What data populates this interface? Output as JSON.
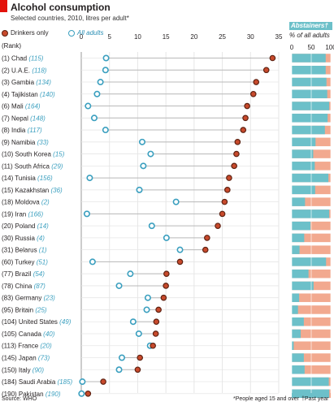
{
  "title": "Alcohol consumption",
  "subtitle": "Selected countries, 2010, litres per adult*",
  "legend": {
    "drinkers": "Drinkers only",
    "all": "All adults"
  },
  "abstainers_header": "Abstainers†",
  "abstainers_subheader": "% of all adults",
  "rank_header": "(Rank)",
  "footer": {
    "source": "Source: WHO",
    "note1": "*People aged 15 and over",
    "note2": "†Past year"
  },
  "colors": {
    "drinkers_fill": "#c84a2c",
    "drinkers_stroke": "#5e2212",
    "all_stroke": "#3a9fbf",
    "abstainers": "#6cc0c9",
    "drinkers_bar": "#f2a98f",
    "grid": "#e6e6e6"
  },
  "chart_data": {
    "type": "dot",
    "x_axis": {
      "min": 0,
      "max": 35,
      "ticks": [
        0,
        5,
        10,
        15,
        20,
        25,
        30,
        35
      ]
    },
    "abstainers_axis": {
      "min": 0,
      "max": 100,
      "ticks": [
        0,
        50,
        100
      ]
    },
    "rows": [
      {
        "rank": "(1)",
        "country": "Chad",
        "all_rank": "(115)",
        "drinkers": 33.9,
        "all": 4.4,
        "abstainers": 87
      },
      {
        "rank": "(2)",
        "country": "U.A.E.",
        "all_rank": "(118)",
        "drinkers": 32.8,
        "all": 4.3,
        "abstainers": 87
      },
      {
        "rank": "(3)",
        "country": "Gambia",
        "all_rank": "(134)",
        "drinkers": 31.0,
        "all": 3.4,
        "abstainers": 89
      },
      {
        "rank": "(4)",
        "country": "Tajikistan",
        "all_rank": "(140)",
        "drinkers": 30.5,
        "all": 2.8,
        "abstainers": 91
      },
      {
        "rank": "(6)",
        "country": "Mali",
        "all_rank": "(164)",
        "drinkers": 29.4,
        "all": 1.2,
        "abstainers": 96
      },
      {
        "rank": "(7)",
        "country": "Nepal",
        "all_rank": "(148)",
        "drinkers": 29.1,
        "all": 2.3,
        "abstainers": 92
      },
      {
        "rank": "(8)",
        "country": "India",
        "all_rank": "(117)",
        "drinkers": 28.7,
        "all": 4.3,
        "abstainers": 85
      },
      {
        "rank": "(9)",
        "country": "Namibia",
        "all_rank": "(33)",
        "drinkers": 27.7,
        "all": 10.8,
        "abstainers": 61
      },
      {
        "rank": "(10)",
        "country": "South Korea",
        "all_rank": "(15)",
        "drinkers": 27.5,
        "all": 12.3,
        "abstainers": 55
      },
      {
        "rank": "(11)",
        "country": "South Africa",
        "all_rank": "(29)",
        "drinkers": 27.1,
        "all": 11.0,
        "abstainers": 59
      },
      {
        "rank": "(14)",
        "country": "Tunisia",
        "all_rank": "(156)",
        "drinkers": 26.2,
        "all": 1.5,
        "abstainers": 94
      },
      {
        "rank": "(15)",
        "country": "Kazakhstan",
        "all_rank": "(36)",
        "drinkers": 25.9,
        "all": 10.3,
        "abstainers": 60
      },
      {
        "rank": "(18)",
        "country": "Moldova",
        "all_rank": "(2)",
        "drinkers": 25.4,
        "all": 16.8,
        "abstainers": 34
      },
      {
        "rank": "(19)",
        "country": "Iran",
        "all_rank": "(166)",
        "drinkers": 25.0,
        "all": 1.0,
        "abstainers": 96
      },
      {
        "rank": "(20)",
        "country": "Poland",
        "all_rank": "(14)",
        "drinkers": 24.2,
        "all": 12.5,
        "abstainers": 48
      },
      {
        "rank": "(30)",
        "country": "Russia",
        "all_rank": "(4)",
        "drinkers": 22.3,
        "all": 15.1,
        "abstainers": 32
      },
      {
        "rank": "(31)",
        "country": "Belarus",
        "all_rank": "(1)",
        "drinkers": 22.0,
        "all": 17.5,
        "abstainers": 20
      },
      {
        "rank": "(60)",
        "country": "Turkey",
        "all_rank": "(51)",
        "drinkers": 17.5,
        "all": 2.0,
        "abstainers": 88
      },
      {
        "rank": "(77)",
        "country": "Brazil",
        "all_rank": "(54)",
        "drinkers": 15.1,
        "all": 8.7,
        "abstainers": 43
      },
      {
        "rank": "(78)",
        "country": "China",
        "all_rank": "(87)",
        "drinkers": 15.0,
        "all": 6.7,
        "abstainers": 56
      },
      {
        "rank": "(83)",
        "country": "Germany",
        "all_rank": "(23)",
        "drinkers": 14.6,
        "all": 11.8,
        "abstainers": 19
      },
      {
        "rank": "(95)",
        "country": "Britain",
        "all_rank": "(25)",
        "drinkers": 13.7,
        "all": 11.6,
        "abstainers": 16
      },
      {
        "rank": "(104)",
        "country": "United States",
        "all_rank": "(49)",
        "drinkers": 13.3,
        "all": 9.2,
        "abstainers": 31
      },
      {
        "rank": "(105)",
        "country": "Canada",
        "all_rank": "(40)",
        "drinkers": 13.2,
        "all": 10.2,
        "abstainers": 23
      },
      {
        "rank": "(113)",
        "country": "France",
        "all_rank": "(20)",
        "drinkers": 12.7,
        "all": 12.2,
        "abstainers": 5
      },
      {
        "rank": "(145)",
        "country": "Japan",
        "all_rank": "(73)",
        "drinkers": 10.4,
        "all": 7.2,
        "abstainers": 31
      },
      {
        "rank": "(150)",
        "country": "Italy",
        "all_rank": "(90)",
        "drinkers": 10.0,
        "all": 6.7,
        "abstainers": 33
      },
      {
        "rank": "(184)",
        "country": "Saudi Arabia",
        "all_rank": "(185)",
        "drinkers": 3.9,
        "all": 0.2,
        "abstainers": 95
      },
      {
        "rank": "(190)",
        "country": "Pakistan",
        "all_rank": "(190)",
        "drinkers": 1.2,
        "all": 0.05,
        "abstainers": 96
      }
    ]
  }
}
